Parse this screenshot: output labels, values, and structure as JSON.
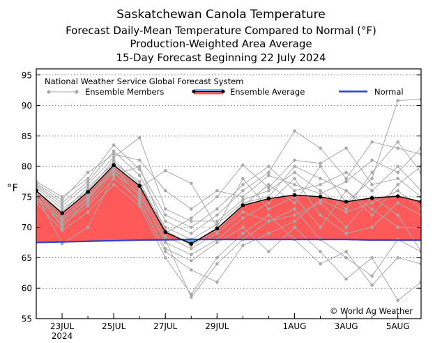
{
  "chart_data": {
    "type": "line",
    "title": "Saskatchewan Canola Temperature",
    "subtitle_lines": [
      "Forecast Daily-Mean Temperature Compared to Normal (°F)",
      "Production-Weighted Area Average",
      "15-Day Forecast Beginning 22 July 2024"
    ],
    "ylabel": "°F",
    "xlabel": "",
    "ylim": [
      55,
      96
    ],
    "yticks": [
      55,
      60,
      65,
      70,
      75,
      80,
      85,
      90,
      95
    ],
    "xlim": [
      0,
      14.9
    ],
    "xticks": [
      {
        "x": 1,
        "label": "23JUL",
        "sublabel": "2024"
      },
      {
        "x": 3,
        "label": "25JUL",
        "sublabel": ""
      },
      {
        "x": 5,
        "label": "27JUL",
        "sublabel": ""
      },
      {
        "x": 7,
        "label": "29JUL",
        "sublabel": ""
      },
      {
        "x": 10,
        "label": "1AUG",
        "sublabel": ""
      },
      {
        "x": 12,
        "label": "3AUG",
        "sublabel": ""
      },
      {
        "x": 14,
        "label": "5AUG",
        "sublabel": ""
      }
    ],
    "grid": true,
    "legend_title": "National Weather Service Global Forecast System",
    "legend": {
      "members": "Ensemble Members",
      "average": "Ensemble Average",
      "normal": "Normal"
    },
    "annotation": "© World Ag Weather",
    "colors": {
      "members": "#a9a9a9",
      "average": "#000000",
      "above_fill": "#ff5a5a",
      "below_fill": "#6fb7ff",
      "normal": "#2a3fd6"
    },
    "series": [
      {
        "name": "Ensemble Average",
        "x": [
          0,
          1,
          2,
          3,
          4,
          5,
          6,
          7,
          8,
          9,
          10,
          11,
          12,
          13,
          14,
          14.9
        ],
        "values": [
          76.0,
          72.3,
          75.8,
          80.2,
          76.8,
          69.2,
          67.3,
          69.8,
          73.6,
          74.7,
          75.3,
          75.0,
          74.2,
          74.8,
          75.1,
          74.2
        ]
      },
      {
        "name": "Normal",
        "x": [
          0,
          1,
          2,
          3,
          4,
          5,
          6,
          7,
          8,
          9,
          10,
          11,
          12,
          13,
          14,
          14.9
        ],
        "values": [
          67.5,
          67.6,
          67.7,
          67.8,
          67.9,
          67.95,
          68.0,
          68.0,
          68.0,
          68.0,
          68.0,
          68.0,
          68.0,
          67.9,
          67.9,
          67.9
        ]
      }
    ],
    "members": [
      [
        76.5,
        73.0,
        76.0,
        81.0,
        77.0,
        70.0,
        68.0,
        70.5,
        74.0,
        75.0,
        80.0,
        78.0,
        76.0,
        72.0,
        77.0,
        80.0
      ],
      [
        75.5,
        71.5,
        75.0,
        79.5,
        76.0,
        68.5,
        66.5,
        69.0,
        72.5,
        71.0,
        72.0,
        74.0,
        70.0,
        75.0,
        72.0,
        66.0
      ],
      [
        77.0,
        74.0,
        77.5,
        82.5,
        78.5,
        71.0,
        69.0,
        72.0,
        76.0,
        79.0,
        85.8,
        83.0,
        78.0,
        84.0,
        83.0,
        82.0
      ],
      [
        74.5,
        70.5,
        73.5,
        78.0,
        74.5,
        66.5,
        64.5,
        67.5,
        70.0,
        66.0,
        70.0,
        66.0,
        61.5,
        65.0,
        58.0,
        61.0
      ],
      [
        76.0,
        72.5,
        76.5,
        80.5,
        77.5,
        69.5,
        67.0,
        69.5,
        73.5,
        77.0,
        74.0,
        80.0,
        74.0,
        78.0,
        90.8,
        91.0
      ],
      [
        75.0,
        71.0,
        74.0,
        79.0,
        75.5,
        67.5,
        65.5,
        68.0,
        71.5,
        74.0,
        78.0,
        72.0,
        69.0,
        70.0,
        74.0,
        72.0
      ],
      [
        77.5,
        75.0,
        78.0,
        83.5,
        79.5,
        72.0,
        70.0,
        73.0,
        77.0,
        80.0,
        76.0,
        77.0,
        79.0,
        76.0,
        80.0,
        76.0
      ],
      [
        74.0,
        69.5,
        72.5,
        77.0,
        73.5,
        65.0,
        59.0,
        65.0,
        69.0,
        72.0,
        68.0,
        64.0,
        66.0,
        60.5,
        65.0,
        64.0
      ],
      [
        76.8,
        73.5,
        77.0,
        81.5,
        84.7,
        73.0,
        71.0,
        71.0,
        74.5,
        76.0,
        79.0,
        76.0,
        73.0,
        79.0,
        84.0,
        79.0
      ],
      [
        75.8,
        72.0,
        75.5,
        80.0,
        76.5,
        79.3,
        77.2,
        70.0,
        78.0,
        73.0,
        75.0,
        70.0,
        76.0,
        73.0,
        70.0,
        70.0
      ],
      [
        76.2,
        70.0,
        74.5,
        79.8,
        75.0,
        68.0,
        58.5,
        64.0,
        68.0,
        71.0,
        73.0,
        68.0,
        65.0,
        62.0,
        68.0,
        66.0
      ],
      [
        75.3,
        67.3,
        70.0,
        78.5,
        80.0,
        69.0,
        71.5,
        75.0,
        80.2,
        76.5,
        81.0,
        80.5,
        83.0,
        77.0,
        78.0,
        75.0
      ],
      [
        77.2,
        74.5,
        79.0,
        82.0,
        81.0,
        76.0,
        73.0,
        76.0,
        75.0,
        78.5,
        77.0,
        75.5,
        77.5,
        81.0,
        79.0,
        83.0
      ],
      [
        74.8,
        71.2,
        74.8,
        79.2,
        74.0,
        66.0,
        63.0,
        61.0,
        67.0,
        69.0,
        71.0,
        74.5,
        72.5,
        74.0,
        76.0,
        73.0
      ]
    ]
  }
}
